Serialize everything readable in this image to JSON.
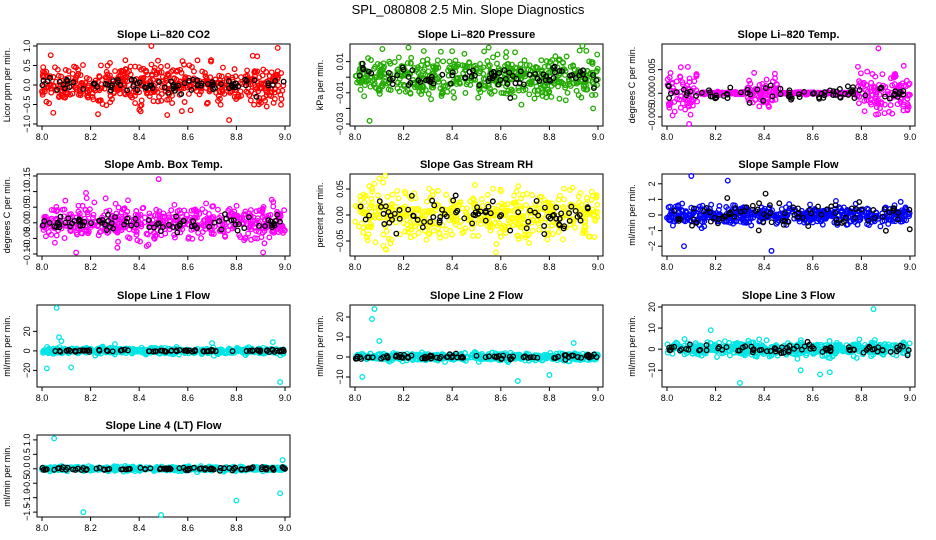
{
  "figure": {
    "title": "SPL_080808  2.5 Min. Slope Diagnostics"
  },
  "chart_data": [
    {
      "type": "scatter",
      "title": "Slope Li–820 CO2",
      "xlabel": "",
      "ylabel": "Licor ppm per min.",
      "xlim": [
        8.0,
        9.0
      ],
      "ylim": [
        -1.0,
        1.0
      ],
      "xticks": [
        8.0,
        8.2,
        8.4,
        8.6,
        8.8,
        9.0
      ],
      "xtick_labels": [
        "8.0",
        "8.2",
        "8.4",
        "8.6",
        "8.8",
        "9.0"
      ],
      "yticks": [
        -1.0,
        -0.5,
        0.0,
        0.5,
        1.0
      ],
      "ytick_labels": [
        "−1.0",
        "−0.5",
        "0.0",
        "0.5",
        "1.0"
      ],
      "color": "#ff0000",
      "black_color": "#000000",
      "segments": [
        {
          "from": 8.0,
          "to": 9.0,
          "center": 0.0,
          "spread": 0.45
        }
      ],
      "black_spread": 0.15,
      "outliers": [
        [
          8.45,
          1.0
        ],
        [
          8.77,
          -0.9
        ],
        [
          8.97,
          0.95
        ]
      ]
    },
    {
      "type": "scatter",
      "title": "Slope Li–820 Pressure",
      "xlabel": "",
      "ylabel": "kPa per min.",
      "xlim": [
        8.0,
        9.0
      ],
      "ylim": [
        -0.03,
        0.02
      ],
      "xticks": [
        8.0,
        8.2,
        8.4,
        8.6,
        8.8,
        9.0
      ],
      "xtick_labels": [
        "8.0",
        "8.2",
        "8.4",
        "8.6",
        "8.8",
        "9.0"
      ],
      "yticks": [
        -0.03,
        -0.01,
        0.01
      ],
      "ytick_labels": [
        "−0.03",
        "−0.01",
        "0.01"
      ],
      "minor_yticks": [
        -0.02,
        0.0
      ],
      "color": "#22aa00",
      "black_color": "#000000",
      "segments": [
        {
          "from": 8.0,
          "to": 9.0,
          "center": 0.0,
          "spread": 0.011
        }
      ],
      "black_spread": 0.005,
      "outliers": [
        [
          8.06,
          -0.028
        ],
        [
          8.22,
          0.019
        ],
        [
          8.55,
          0.019
        ],
        [
          8.98,
          -0.02
        ]
      ]
    },
    {
      "type": "scatter",
      "title": "Slope Li–820 Temp.",
      "xlabel": "",
      "ylabel": "degrees C per min.",
      "xlim": [
        8.0,
        9.0
      ],
      "ylim": [
        -0.0065,
        0.01
      ],
      "xticks": [
        8.0,
        8.2,
        8.4,
        8.6,
        8.8,
        9.0
      ],
      "xtick_labels": [
        "8.0",
        "8.2",
        "8.4",
        "8.6",
        "8.8",
        "9.0"
      ],
      "yticks": [
        -0.005,
        0.0,
        0.005
      ],
      "ytick_labels": [
        "−0.005",
        "0.000",
        "0.005"
      ],
      "color": "#ff00ff",
      "black_color": "#000000",
      "segments": [
        {
          "from": 8.0,
          "to": 8.13,
          "center": 0.0,
          "spread": 0.004
        },
        {
          "from": 8.13,
          "to": 8.33,
          "center": 0.0,
          "spread": 0.0002
        },
        {
          "from": 8.33,
          "to": 8.46,
          "center": 0.0,
          "spread": 0.0022
        },
        {
          "from": 8.46,
          "to": 8.78,
          "center": 0.0,
          "spread": 0.0002
        },
        {
          "from": 8.78,
          "to": 9.0,
          "center": 0.0,
          "spread": 0.0035
        }
      ],
      "black_spread": 0.0015,
      "outliers": [
        [
          8.87,
          0.0095
        ],
        [
          8.86,
          -0.0045
        ]
      ]
    },
    {
      "type": "scatter",
      "title": "Slope Amb. Box Temp.",
      "xlabel": "",
      "ylabel": "degrees C per min.",
      "xlim": [
        8.0,
        9.0
      ],
      "ylim": [
        -0.1,
        0.15
      ],
      "xticks": [
        8.0,
        8.2,
        8.4,
        8.6,
        8.8,
        9.0
      ],
      "xtick_labels": [
        "8.0",
        "8.2",
        "8.4",
        "8.6",
        "8.8",
        "9.0"
      ],
      "yticks": [
        -0.1,
        -0.05,
        0.0,
        0.05,
        0.1,
        0.15
      ],
      "ytick_labels": [
        "−0.10",
        "−0.05",
        "0.00",
        "0.05",
        "0.10",
        "0.15"
      ],
      "color": "#ff00ff",
      "black_color": "#000000",
      "segments": [
        {
          "from": 8.0,
          "to": 9.0,
          "center": 0.0,
          "spread": 0.045
        }
      ],
      "black_spread": 0.02,
      "outliers": [
        [
          8.48,
          0.14
        ],
        [
          8.91,
          -0.095
        ]
      ]
    },
    {
      "type": "scatter",
      "title": "Slope Gas Stream RH",
      "xlabel": "",
      "ylabel": "percent per min.",
      "xlim": [
        8.0,
        9.0
      ],
      "ylim": [
        -0.075,
        0.075
      ],
      "xticks": [
        8.0,
        8.2,
        8.4,
        8.6,
        8.8,
        9.0
      ],
      "xtick_labels": [
        "8.0",
        "8.2",
        "8.4",
        "8.6",
        "8.8",
        "9.0"
      ],
      "yticks": [
        -0.05,
        0.0,
        0.05
      ],
      "ytick_labels": [
        "−0.05",
        "0.00",
        "0.05"
      ],
      "color": "#ffff00",
      "black_color": "#000000",
      "segments": [
        {
          "from": 8.0,
          "to": 9.0,
          "center": 0.0,
          "spread": 0.038
        }
      ],
      "black_spread": 0.025,
      "outliers": [
        [
          8.1,
          0.07
        ],
        [
          8.58,
          -0.072
        ]
      ]
    },
    {
      "type": "scatter",
      "title": "Slope Sample Flow",
      "xlabel": "",
      "ylabel": "ml/min per min.",
      "xlim": [
        8.0,
        9.0
      ],
      "ylim": [
        -2.5,
        2.5
      ],
      "xticks": [
        8.0,
        8.2,
        8.4,
        8.6,
        8.8,
        9.0
      ],
      "xtick_labels": [
        "8.0",
        "8.2",
        "8.4",
        "8.6",
        "8.8",
        "9.0"
      ],
      "yticks": [
        -2,
        -1,
        0,
        1,
        2
      ],
      "ytick_labels": [
        "−2",
        "−1",
        "0",
        "1",
        "2"
      ],
      "color": "#0000ff",
      "black_color": "#000000",
      "segments": [
        {
          "from": 8.0,
          "to": 9.0,
          "center": 0.0,
          "spread": 0.5
        }
      ],
      "black_spread": 0.7,
      "outliers": [
        [
          8.1,
          2.5
        ],
        [
          8.25,
          2.2
        ],
        [
          8.07,
          -2.0
        ],
        [
          8.43,
          -2.3
        ]
      ]
    },
    {
      "type": "scatter",
      "title": "Slope Line 1 Flow",
      "xlabel": "",
      "ylabel": "ml/min per min.",
      "xlim": [
        8.0,
        9.0
      ],
      "ylim": [
        -35,
        45
      ],
      "xticks": [
        8.0,
        8.2,
        8.4,
        8.6,
        8.8,
        9.0
      ],
      "xtick_labels": [
        "8.0",
        "8.2",
        "8.4",
        "8.6",
        "8.8",
        "9.0"
      ],
      "yticks": [
        -20,
        0,
        20
      ],
      "ytick_labels": [
        "−20",
        "0",
        "20"
      ],
      "color": "#00e5e5",
      "black_color": "#000000",
      "segments": [
        {
          "from": 8.0,
          "to": 9.0,
          "center": 0.0,
          "spread": 2.5
        }
      ],
      "black_spread": 1.0,
      "outliers": [
        [
          8.06,
          44
        ],
        [
          8.07,
          14
        ],
        [
          8.08,
          10
        ],
        [
          8.02,
          -18
        ],
        [
          8.12,
          -17
        ],
        [
          8.7,
          8
        ],
        [
          8.95,
          9
        ],
        [
          8.98,
          -32
        ],
        [
          8.3,
          7
        ]
      ]
    },
    {
      "type": "scatter",
      "title": "Slope Line 2 Flow",
      "xlabel": "",
      "ylabel": "ml/min per min.",
      "xlim": [
        8.0,
        9.0
      ],
      "ylim": [
        -14,
        25
      ],
      "xticks": [
        8.0,
        8.2,
        8.4,
        8.6,
        8.8,
        9.0
      ],
      "xtick_labels": [
        "8.0",
        "8.2",
        "8.4",
        "8.6",
        "8.8",
        "9.0"
      ],
      "yticks": [
        -10,
        0,
        10,
        20
      ],
      "ytick_labels": [
        "−10",
        "0",
        "10",
        "20"
      ],
      "color": "#00e5e5",
      "black_color": "#000000",
      "segments": [
        {
          "from": 8.0,
          "to": 9.0,
          "center": 0.0,
          "spread": 1.5
        }
      ],
      "black_spread": 1.2,
      "outliers": [
        [
          8.07,
          19
        ],
        [
          8.08,
          24
        ],
        [
          8.03,
          -10
        ],
        [
          8.1,
          8
        ],
        [
          8.8,
          -9
        ],
        [
          8.67,
          -12
        ],
        [
          8.9,
          7
        ]
      ]
    },
    {
      "type": "scatter",
      "title": "Slope Line 3 Flow",
      "xlabel": "",
      "ylabel": "ml/min per min.",
      "xlim": [
        8.0,
        9.0
      ],
      "ylim": [
        -17,
        20
      ],
      "xticks": [
        8.0,
        8.2,
        8.4,
        8.6,
        8.8,
        9.0
      ],
      "xtick_labels": [
        "8.0",
        "8.2",
        "8.4",
        "8.6",
        "8.8",
        "9.0"
      ],
      "yticks": [
        -10,
        0,
        10,
        20
      ],
      "ytick_labels": [
        "−10",
        "0",
        "10",
        "20"
      ],
      "color": "#00e5e5",
      "black_color": "#000000",
      "segments": [
        {
          "from": 8.0,
          "to": 9.0,
          "center": 0.0,
          "spread": 2.5
        }
      ],
      "black_spread": 2.0,
      "outliers": [
        [
          8.3,
          -16
        ],
        [
          8.63,
          -12
        ],
        [
          8.67,
          -11
        ],
        [
          8.85,
          19
        ],
        [
          8.18,
          9
        ],
        [
          8.55,
          -10
        ]
      ]
    },
    {
      "type": "scatter",
      "title": "Slope Line 4 (LT) Flow",
      "xlabel": "",
      "ylabel": "ml/min per min.",
      "xlim": [
        8.0,
        9.0
      ],
      "ylim": [
        -1.6,
        1.1
      ],
      "xticks": [
        8.0,
        8.2,
        8.4,
        8.6,
        8.8,
        9.0
      ],
      "xtick_labels": [
        "8.0",
        "8.2",
        "8.4",
        "8.6",
        "8.8",
        "9.0"
      ],
      "yticks": [
        -1.5,
        -1.0,
        -0.5,
        0.0,
        0.5,
        1.0
      ],
      "ytick_labels": [
        "−1.5",
        "−1.0",
        "−0.5",
        "0.0",
        "0.5",
        "1.0"
      ],
      "color": "#00e5e5",
      "black_color": "#000000",
      "segments": [
        {
          "from": 8.0,
          "to": 9.0,
          "center": 0.0,
          "spread": 0.06
        }
      ],
      "black_spread": 0.05,
      "outliers": [
        [
          8.05,
          1.05
        ],
        [
          8.17,
          -1.5
        ],
        [
          8.49,
          -1.65
        ],
        [
          8.8,
          -1.1
        ],
        [
          8.98,
          -0.85
        ],
        [
          8.99,
          0.3
        ]
      ]
    }
  ]
}
